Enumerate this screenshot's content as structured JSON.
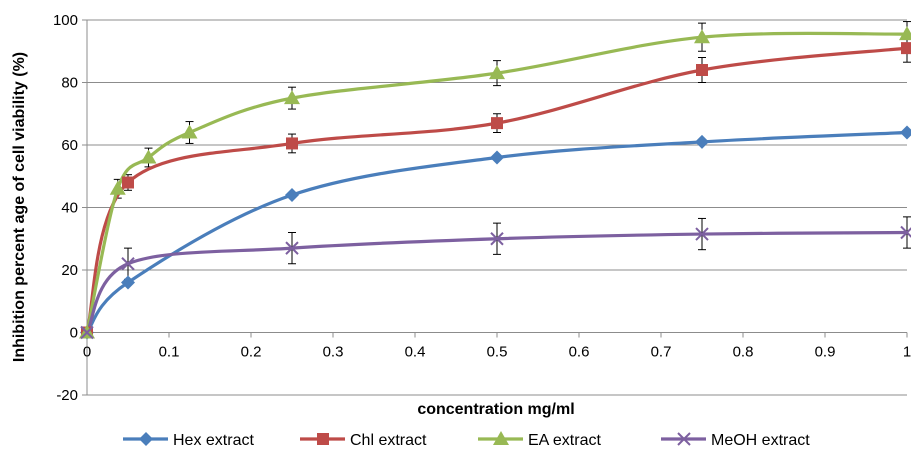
{
  "chart_data": {
    "type": "line",
    "xlabel": "concentration mg/ml",
    "ylabel": "Inhibition percent age of cell viability (%)",
    "xlim": [
      0,
      1
    ],
    "ylim": [
      -20,
      100
    ],
    "x_ticks": [
      0,
      0.1,
      0.2,
      0.3,
      0.4,
      0.5,
      0.6,
      0.7,
      0.8,
      0.9,
      1
    ],
    "x_tick_labels": [
      "0",
      "0.1",
      "0.2",
      "0.3",
      "0.4",
      "0.5",
      "0.6",
      "0.7",
      "0.8",
      "0.9",
      "1"
    ],
    "y_ticks": [
      -20,
      0,
      20,
      40,
      60,
      80,
      100
    ],
    "y_tick_labels": [
      "-20",
      "0",
      "20",
      "40",
      "60",
      "80",
      "100"
    ],
    "grid": "horizontal",
    "legend_position": "bottom",
    "smooth": true,
    "series": [
      {
        "name": "Hex extract",
        "color": "#4a7ebb",
        "marker": "diamond",
        "points": [
          {
            "x": 0,
            "y": 0
          },
          {
            "x": 0.05,
            "y": 16
          },
          {
            "x": 0.25,
            "y": 44
          },
          {
            "x": 0.5,
            "y": 56
          },
          {
            "x": 0.75,
            "y": 61
          },
          {
            "x": 1,
            "y": 64
          }
        ]
      },
      {
        "name": "Chl extract",
        "color": "#be4b48",
        "marker": "square",
        "points": [
          {
            "x": 0,
            "y": 0,
            "err": 0
          },
          {
            "x": 0.05,
            "y": 48,
            "err": 2.5
          },
          {
            "x": 0.25,
            "y": 60.5,
            "err": 3
          },
          {
            "x": 0.5,
            "y": 67,
            "err": 3
          },
          {
            "x": 0.75,
            "y": 84,
            "err": 4
          },
          {
            "x": 1,
            "y": 91,
            "err": 4.5
          }
        ]
      },
      {
        "name": "EA extract",
        "color": "#98b954",
        "marker": "triangle",
        "points": [
          {
            "x": 0,
            "y": 0,
            "err": 0
          },
          {
            "x": 0.0375,
            "y": 46,
            "err": 3
          },
          {
            "x": 0.075,
            "y": 56,
            "err": 3
          },
          {
            "x": 0.125,
            "y": 64,
            "err": 3.5
          },
          {
            "x": 0.25,
            "y": 75,
            "err": 3.5
          },
          {
            "x": 0.5,
            "y": 83,
            "err": 4
          },
          {
            "x": 0.75,
            "y": 94.5,
            "err": 4.5
          },
          {
            "x": 1,
            "y": 95.5,
            "err": 4
          }
        ]
      },
      {
        "name": "MeOH extract",
        "color": "#7d60a0",
        "marker": "x",
        "points": [
          {
            "x": 0,
            "y": 0,
            "err": 0
          },
          {
            "x": 0.05,
            "y": 22,
            "err": 5
          },
          {
            "x": 0.25,
            "y": 27,
            "err": 5
          },
          {
            "x": 0.5,
            "y": 30,
            "err": 5
          },
          {
            "x": 0.75,
            "y": 31.5,
            "err": 5
          },
          {
            "x": 1,
            "y": 32,
            "err": 5
          }
        ]
      }
    ]
  }
}
